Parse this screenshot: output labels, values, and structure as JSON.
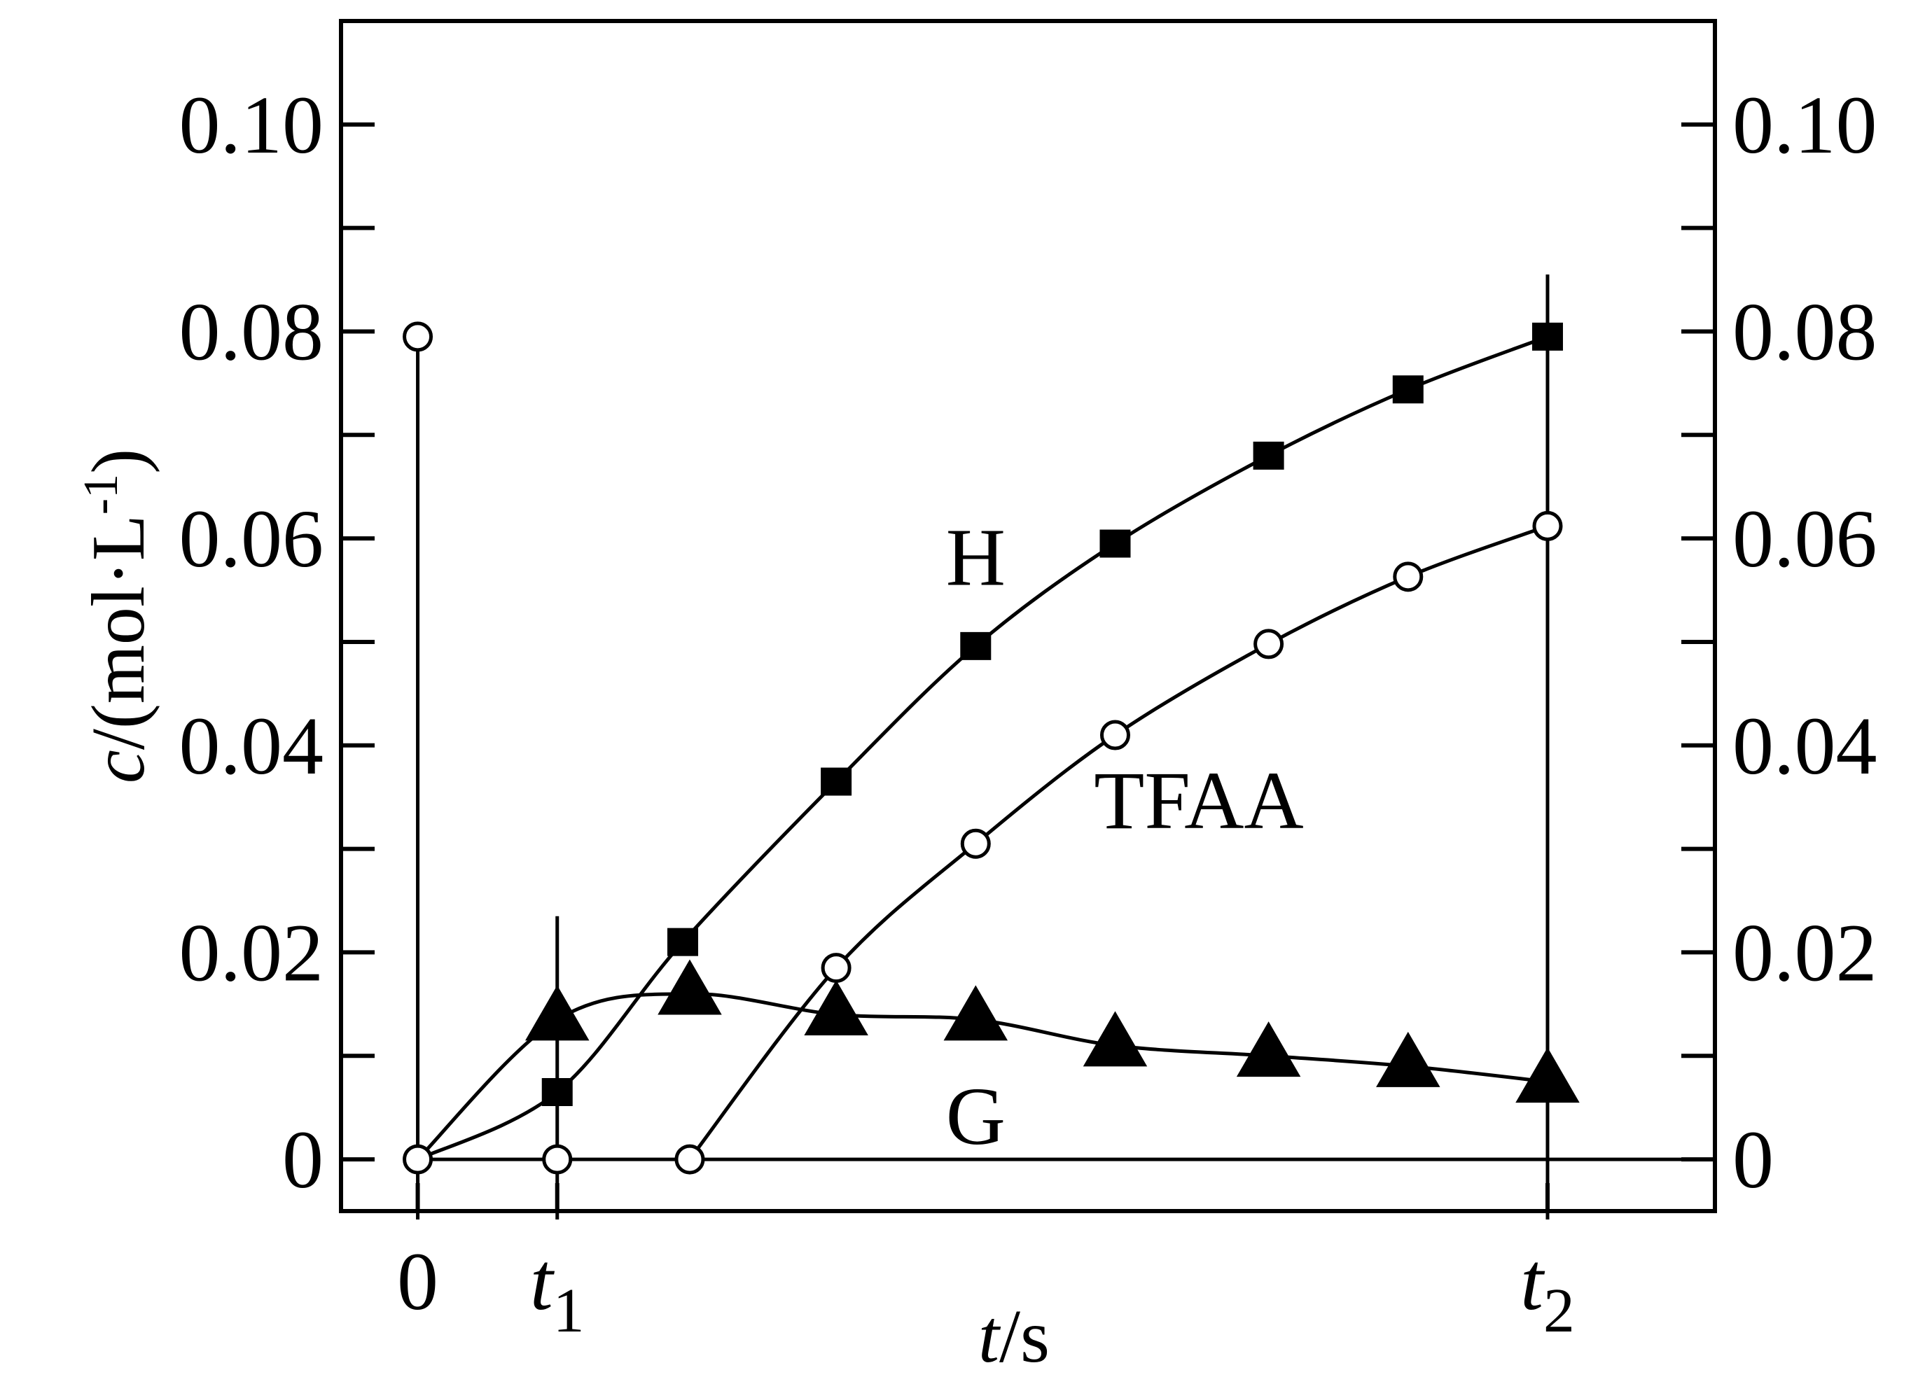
{
  "chart_data": {
    "type": "line",
    "ylabel_italic": "c",
    "ylabel_rest": "/(mol·L",
    "ylabel_exp": "-1",
    "ylabel_close": ")",
    "xlabel_italic": "t",
    "xlabel_rest": "/s",
    "ylim": [
      -0.005,
      0.11
    ],
    "xlim": [
      -0.55,
      9.3
    ],
    "y_ticks": [
      {
        "value": 0,
        "label": "0"
      },
      {
        "value": 0.02,
        "label": "0.02"
      },
      {
        "value": 0.04,
        "label": "0.04"
      },
      {
        "value": 0.06,
        "label": "0.06"
      },
      {
        "value": 0.08,
        "label": "0.08"
      },
      {
        "value": 0.1,
        "label": "0.10"
      }
    ],
    "y_minor_ticks": [
      0.01,
      0.03,
      0.05,
      0.07,
      0.09
    ],
    "x_ticks": [
      {
        "value": 0,
        "label": "0",
        "sub": ""
      },
      {
        "value": 1,
        "label": "t",
        "sub": "1"
      },
      {
        "value": 8.1,
        "label": "t",
        "sub": "2"
      }
    ],
    "vertical_lines": [
      {
        "x": 0,
        "y_top": 0.0795
      },
      {
        "x": 1,
        "y_top": 0.0235
      },
      {
        "x": 8.1,
        "y_top": 0.0855
      }
    ],
    "baseline_y": 0,
    "series": [
      {
        "name": "H",
        "marker": "square",
        "x": [
          0,
          1,
          1.9,
          3.0,
          4.0,
          5.0,
          6.1,
          7.1,
          8.1
        ],
        "y": [
          0,
          0.0065,
          0.021,
          0.0365,
          0.0496,
          0.0595,
          0.068,
          0.0744,
          0.0795
        ]
      },
      {
        "name": "TFAA",
        "marker": "open-circle",
        "x": [
          0,
          1,
          1.95,
          3.0,
          4.0,
          5.0,
          6.1,
          7.1,
          8.1
        ],
        "y": [
          0,
          0,
          0,
          0.0185,
          0.0305,
          0.041,
          0.0498,
          0.0563,
          0.0612
        ]
      },
      {
        "name": "G",
        "marker": "triangle",
        "x": [
          0,
          1,
          1.95,
          3.0,
          4.0,
          5.0,
          6.1,
          7.1,
          8.1
        ],
        "y": [
          0,
          0.0135,
          0.016,
          0.014,
          0.0135,
          0.011,
          0.01,
          0.009,
          0.0075
        ]
      }
    ],
    "start_point": {
      "x": 0,
      "y": 0.0795
    },
    "annotations": [
      {
        "text": "H",
        "x": 4.0,
        "y": 0.0555
      },
      {
        "text": "TFAA",
        "x": 5.6,
        "y": 0.032
      },
      {
        "text": "G",
        "x": 4.0,
        "y": 0.0015
      }
    ]
  }
}
